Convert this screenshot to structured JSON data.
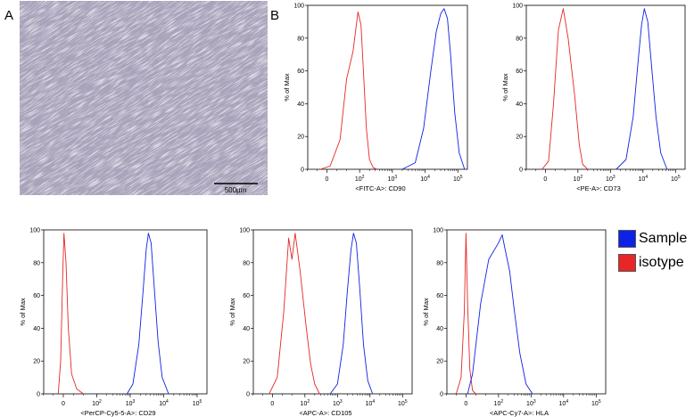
{
  "panels": {
    "a": "A",
    "b": "B"
  },
  "micrograph": {
    "scale_bar_label": "500μm",
    "bg_color": "#a8a2ba"
  },
  "legend": {
    "items": [
      {
        "label": "Sample",
        "color": "#0d22e6"
      },
      {
        "label": "isotype",
        "color": "#e82626"
      }
    ]
  },
  "chart_data": [
    {
      "type": "line",
      "xlabel": "<FITC-A>: CD90",
      "ylabel": "% of Max",
      "xscale": "biexponential",
      "xticks": [
        "0",
        "10²",
        "10³",
        "10⁴",
        "10⁵"
      ],
      "yticks": [
        "0",
        "20",
        "40",
        "60",
        "80",
        "100"
      ],
      "ylim": [
        0,
        100
      ],
      "series": [
        {
          "color": "#e82626",
          "points": [
            [
              -20,
              0
            ],
            [
              10,
              2
            ],
            [
              40,
              18
            ],
            [
              60,
              55
            ],
            [
              80,
              72
            ],
            [
              95,
              96
            ],
            [
              110,
              88
            ],
            [
              130,
              60
            ],
            [
              160,
              25
            ],
            [
              200,
              6
            ],
            [
              260,
              1
            ],
            [
              350,
              0
            ]
          ]
        },
        {
          "color": "#0d22e6",
          "points": [
            [
              2000,
              0
            ],
            [
              5000,
              4
            ],
            [
              9000,
              25
            ],
            [
              15000,
              60
            ],
            [
              22000,
              84
            ],
            [
              30000,
              95
            ],
            [
              38000,
              98
            ],
            [
              48000,
              92
            ],
            [
              60000,
              70
            ],
            [
              80000,
              35
            ],
            [
              110000,
              10
            ],
            [
              160000,
              0
            ]
          ]
        }
      ]
    },
    {
      "type": "line",
      "xlabel": "<PE-A>: CD73",
      "ylabel": "% of Max",
      "xscale": "biexponential",
      "xticks": [
        "0",
        "10²",
        "10³",
        "10⁴",
        "10⁵"
      ],
      "yticks": [
        "0",
        "20",
        "40",
        "60",
        "80",
        "100"
      ],
      "ylim": [
        0,
        100
      ],
      "series": [
        {
          "color": "#e82626",
          "points": [
            [
              -10,
              0
            ],
            [
              10,
              5
            ],
            [
              25,
              40
            ],
            [
              40,
              85
            ],
            [
              55,
              98
            ],
            [
              70,
              80
            ],
            [
              90,
              45
            ],
            [
              110,
              15
            ],
            [
              140,
              3
            ],
            [
              200,
              0
            ]
          ]
        },
        {
          "color": "#0d22e6",
          "points": [
            [
              1500,
              0
            ],
            [
              3000,
              6
            ],
            [
              5000,
              32
            ],
            [
              7000,
              65
            ],
            [
              9000,
              88
            ],
            [
              11000,
              98
            ],
            [
              14000,
              90
            ],
            [
              18000,
              65
            ],
            [
              25000,
              32
            ],
            [
              35000,
              10
            ],
            [
              55000,
              0
            ]
          ]
        }
      ]
    },
    {
      "type": "line",
      "xlabel": "<PerCP-Cy5-5-A>: CD29",
      "ylabel": "% of Max",
      "xscale": "biexponential",
      "xticks": [
        "0",
        "10²",
        "10³",
        "10⁴",
        "10⁵"
      ],
      "yticks": [
        "0",
        "20",
        "40",
        "60",
        "80",
        "100"
      ],
      "ylim": [
        0,
        100
      ],
      "series": [
        {
          "color": "#e82626",
          "points": [
            [
              -15,
              0
            ],
            [
              -8,
              20
            ],
            [
              -2,
              70
            ],
            [
              2,
              98
            ],
            [
              8,
              80
            ],
            [
              15,
              40
            ],
            [
              25,
              12
            ],
            [
              40,
              3
            ],
            [
              60,
              0
            ]
          ]
        },
        {
          "color": "#0d22e6",
          "points": [
            [
              800,
              0
            ],
            [
              1200,
              6
            ],
            [
              1800,
              30
            ],
            [
              2400,
              62
            ],
            [
              3000,
              88
            ],
            [
              3500,
              98
            ],
            [
              4200,
              92
            ],
            [
              5200,
              65
            ],
            [
              6800,
              32
            ],
            [
              9000,
              10
            ],
            [
              14000,
              0
            ]
          ]
        }
      ]
    },
    {
      "type": "line",
      "xlabel": "<APC-A>: CD105",
      "ylabel": "% of Max",
      "xscale": "biexponential",
      "xticks": [
        "0",
        "10²",
        "10³",
        "10⁴",
        "10⁵"
      ],
      "yticks": [
        "0",
        "20",
        "40",
        "60",
        "80",
        "100"
      ],
      "ylim": [
        0,
        100
      ],
      "series": [
        {
          "color": "#e82626",
          "points": [
            [
              -10,
              0
            ],
            [
              15,
              10
            ],
            [
              35,
              50
            ],
            [
              50,
              95
            ],
            [
              60,
              82
            ],
            [
              70,
              98
            ],
            [
              85,
              75
            ],
            [
              110,
              40
            ],
            [
              150,
              18
            ],
            [
              200,
              6
            ],
            [
              280,
              0
            ]
          ]
        },
        {
          "color": "#0d22e6",
          "points": [
            [
              600,
              0
            ],
            [
              1000,
              6
            ],
            [
              1500,
              30
            ],
            [
              2000,
              62
            ],
            [
              2600,
              88
            ],
            [
              3100,
              98
            ],
            [
              3800,
              92
            ],
            [
              4800,
              65
            ],
            [
              6300,
              30
            ],
            [
              8500,
              8
            ],
            [
              12000,
              0
            ]
          ]
        }
      ]
    },
    {
      "type": "line",
      "xlabel": "<APC-Cy7-A>: HLA",
      "ylabel": "% of Max",
      "xscale": "biexponential",
      "xticks": [
        "0",
        "10²",
        "10³",
        "10⁴",
        "10⁵"
      ],
      "yticks": [
        "0",
        "20",
        "40",
        "60",
        "80",
        "100"
      ],
      "ylim": [
        0,
        100
      ],
      "series": [
        {
          "color": "#e82626",
          "points": [
            [
              -30,
              0
            ],
            [
              -15,
              10
            ],
            [
              -5,
              50
            ],
            [
              0,
              98
            ],
            [
              5,
              55
            ],
            [
              12,
              15
            ],
            [
              20,
              2
            ],
            [
              30,
              0
            ]
          ]
        },
        {
          "color": "#0d22e6",
          "points": [
            [
              5,
              0
            ],
            [
              20,
              12
            ],
            [
              45,
              55
            ],
            [
              70,
              82
            ],
            [
              100,
              92
            ],
            [
              130,
              97
            ],
            [
              160,
              88
            ],
            [
              220,
              75
            ],
            [
              300,
              52
            ],
            [
              450,
              25
            ],
            [
              700,
              6
            ],
            [
              1100,
              0
            ]
          ]
        }
      ]
    }
  ]
}
